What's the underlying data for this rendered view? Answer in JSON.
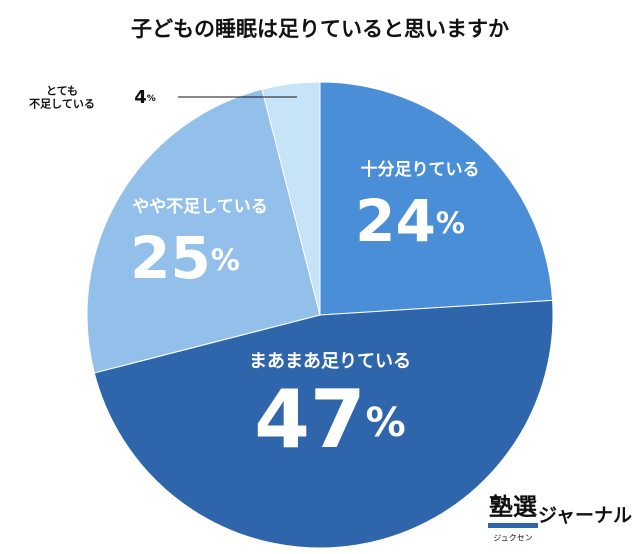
{
  "chart_data": {
    "type": "pie",
    "title": "子どもの睡眠は足りていると思いますか",
    "categories": [
      "十分足りている",
      "まあまあ足りている",
      "やや不足している",
      "とても\n不足している"
    ],
    "values": [
      24,
      47,
      25,
      4
    ],
    "value_labels": [
      "24%",
      "47%",
      "25%",
      "4%"
    ],
    "colors": [
      "#4a8ed8",
      "#2f66ab",
      "#92c0ea",
      "#c6e3f8"
    ]
  },
  "logo": {
    "mark": "塾選",
    "reading": "ジュクセン",
    "name": "ジャーナル"
  }
}
